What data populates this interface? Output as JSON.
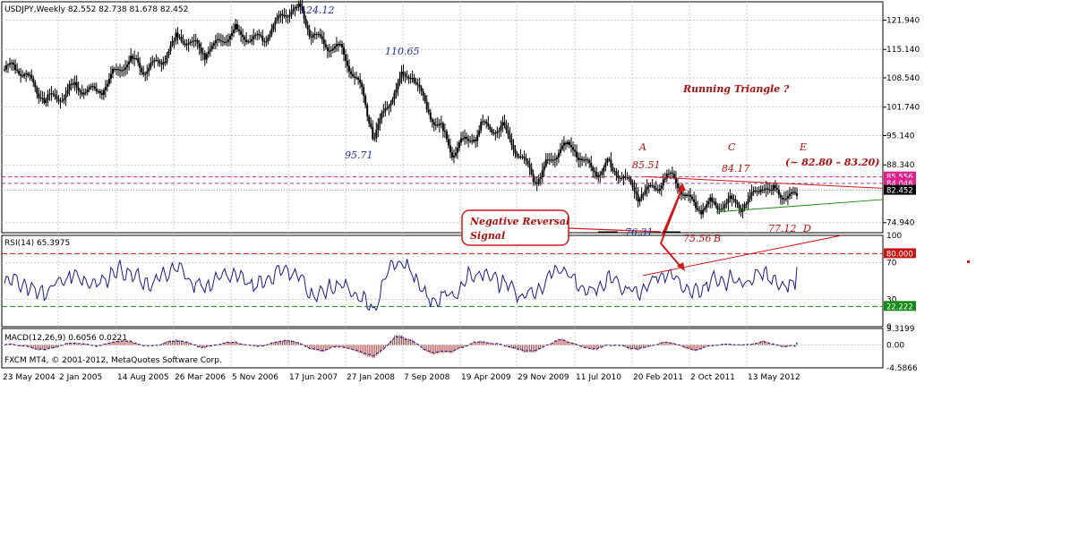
{
  "header": {
    "symbol_line": "USDJPY,Weekly  82.552 82.738 81.678 82.452",
    "rsi_label": "RSI(14) 65.3975",
    "macd_label": "MACD(12,26,9) 0.6056 0.0221",
    "copyright": "FXCM MT4, © 2001-2012, MetaQuotes Software Corp."
  },
  "colors": {
    "candle": "#000000",
    "rsi_line": "#1a1a8c",
    "macd_hist": "#b04040",
    "trend_red": "#d01818",
    "trend_green": "#168a16",
    "price_tag_current": "#000000",
    "price_tag_pink": "#e0208c",
    "rsi_tag_red": "#c81414",
    "rsi_tag_green": "#138a13"
  },
  "chart_data": [
    {
      "type": "candlestick",
      "panel": "price",
      "y_ticks": [
        "121.940",
        "115.140",
        "108.540",
        "101.740",
        "95.140",
        "88.340",
        "74.940"
      ],
      "ylim": [
        72.6,
        126.2
      ],
      "x_ticks": [
        "23 May 2004",
        "2 Jan 2005",
        "14 Aug 2005",
        "26 Mar 2006",
        "5 Nov 2006",
        "17 Jun 2007",
        "27 Jan 2008",
        "7 Sep 2008",
        "19 Apr 2009",
        "29 Nov 2009",
        "11 Jul 2010",
        "20 Feb 2011",
        "2 Oct 2011",
        "13 May 2012"
      ],
      "series_anchor_points": [
        {
          "x": "23 May 2004",
          "y": 110.5
        },
        {
          "x": "2 Jan 2005",
          "y": 103.5
        },
        {
          "x": "14 Aug 2005",
          "y": 110.0
        },
        {
          "x": "26 Mar 2006",
          "y": 116.0
        },
        {
          "x": "5 Nov 2006",
          "y": 117.5
        },
        {
          "x": "17 Jun 2007",
          "y": 123.8
        },
        {
          "x": "27 Jan 2008",
          "y": 106.5
        },
        {
          "x": "mid Mar 2008",
          "y": 96.5
        },
        {
          "x": "Aug 2008",
          "y": 110.4
        },
        {
          "x": "7 Sep 2008",
          "y": 106.0
        },
        {
          "x": "Jan 2009",
          "y": 89.5
        },
        {
          "x": "19 Apr 2009",
          "y": 99.0
        },
        {
          "x": "29 Nov 2009",
          "y": 86.5
        },
        {
          "x": "Apr 2010",
          "y": 93.0
        },
        {
          "x": "11 Jul 2010",
          "y": 86.5
        },
        {
          "x": "20 Feb 2011",
          "y": 82.5
        },
        {
          "x": "Apr 2011",
          "y": 84.5
        },
        {
          "x": "Oct 2011",
          "y": 77.0
        },
        {
          "x": "Apr 2012",
          "y": 83.8
        },
        {
          "x": "13 May 2012",
          "y": 79.5
        },
        {
          "x": "Nov 2012",
          "y": 82.4
        }
      ],
      "horizontal_levels": [
        {
          "value": 85.556,
          "label": "85.556",
          "style": "dashed",
          "color": "#e0208c"
        },
        {
          "value": 84.046,
          "label": "84.046",
          "style": "dashed",
          "color": "#9a3fa0"
        },
        {
          "value": 82.452,
          "label": "82.452",
          "style": "current"
        }
      ],
      "annotations": [
        {
          "text": "124.12",
          "color": "blue"
        },
        {
          "text": "110.65",
          "color": "blue"
        },
        {
          "text": "95.71",
          "color": "blue"
        },
        {
          "text": "76.31",
          "color": "blue"
        },
        {
          "text": "A",
          "color": "red"
        },
        {
          "text": "85.51",
          "color": "red"
        },
        {
          "text": "C",
          "color": "red"
        },
        {
          "text": "84.17",
          "color": "red"
        },
        {
          "text": "E",
          "color": "red"
        },
        {
          "text": "(~ 82.80 – 83.20)",
          "color": "red"
        },
        {
          "text": "Running Triangle  ?",
          "color": "red"
        },
        {
          "text": "75.56",
          "color": "red"
        },
        {
          "text": "B",
          "color": "red"
        },
        {
          "text": "77.12",
          "color": "red"
        },
        {
          "text": "D",
          "color": "red"
        }
      ],
      "callout": {
        "line1": "Negative Reversal",
        "line2": "Signal"
      }
    },
    {
      "type": "line",
      "panel": "rsi",
      "name": "RSI(14) 65.3975",
      "y_ticks": [
        "100",
        "70",
        "30",
        "0"
      ],
      "ylim": [
        0,
        100
      ],
      "levels": [
        {
          "value": 80,
          "label": "80.000",
          "style": "dashed",
          "color": "#c81414"
        },
        {
          "value": 22.222,
          "label": "22.222",
          "style": "dashed",
          "color": "#138a13"
        }
      ],
      "last_value": 65.3975
    },
    {
      "type": "bar",
      "panel": "macd",
      "name": "MACD(12,26,9) 0.6056 0.0221",
      "y_ticks": [
        "3.3199",
        "0.00",
        "-4.5866"
      ],
      "ylim": [
        -4.5866,
        3.3199
      ],
      "last_macd": 0.6056,
      "last_signal": 0.0221
    }
  ]
}
